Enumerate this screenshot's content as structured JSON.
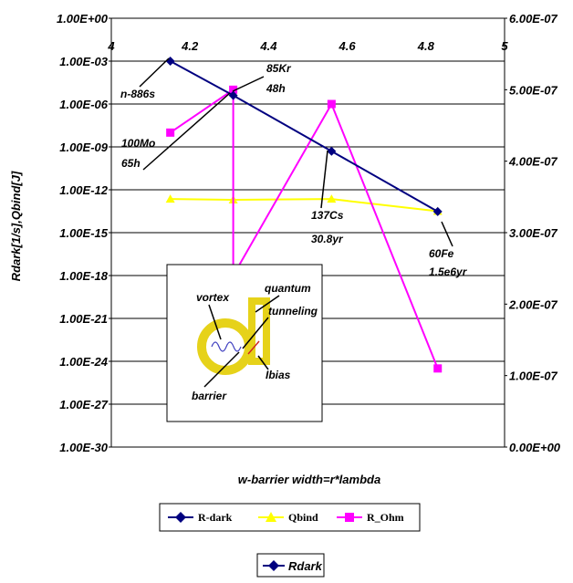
{
  "chart_data": {
    "type": "line",
    "xlabel": "w-barrier width=r*lambda",
    "ylabel": "Rdark[1/s],Qbind[J]",
    "xlim": [
      4,
      5
    ],
    "x_ticks": [
      "4",
      "4.2",
      "4.4",
      "4.6",
      "4.8",
      "5"
    ],
    "y_left_log_exponents": [
      0,
      -30
    ],
    "y_left_ticks": [
      "1.00E+00",
      "1.00E-03",
      "1.00E-06",
      "1.00E-09",
      "1.00E-12",
      "1.00E-15",
      "1.00E-18",
      "1.00E-21",
      "1.00E-24",
      "1.00E-27",
      "1.00E-30"
    ],
    "y_right_lim": [
      0,
      6e-07
    ],
    "y_right_ticks": [
      "6.00E-07",
      "5.00E-07",
      "4.00E-07",
      "3.00E-07",
      "2.00E-07",
      "1.00E-07",
      "0.00E+00"
    ],
    "grid": true,
    "series": [
      {
        "name": "R-dark",
        "axis": "left",
        "color": "#000080",
        "marker": "diamond",
        "x": [
          4.15,
          4.31,
          4.56,
          4.83
        ],
        "y": [
          0.001,
          4e-06,
          5e-10,
          3e-14
        ]
      },
      {
        "name": "Qbind",
        "axis": "right",
        "color": "#ffff00",
        "marker": "triangle",
        "x": [
          4.15,
          4.31,
          4.56,
          4.83
        ],
        "y": [
          3.47e-07,
          3.46e-07,
          3.47e-07,
          3.3e-07
        ]
      },
      {
        "name": "R_Ohm",
        "axis": "right",
        "color": "#ff00ff",
        "marker": "square",
        "x": [
          4.15,
          4.31,
          4.31,
          4.56,
          4.83
        ],
        "y": [
          4.4e-07,
          5e-07,
          2.4e-07,
          4.8e-07,
          1.1e-07
        ]
      }
    ],
    "annotations": [
      {
        "lines": [
          "n-886s"
        ]
      },
      {
        "lines": [
          "85Kr",
          "48h"
        ]
      },
      {
        "lines": [
          "100Mo",
          "65h"
        ]
      },
      {
        "lines": [
          "137Cs",
          "30.8yr"
        ]
      },
      {
        "lines": [
          "60Fe",
          "1.5e6yr"
        ]
      }
    ],
    "inset_labels": {
      "vortex": "vortex",
      "quantum": "quantum",
      "tunneling": "tunneling",
      "ibias": "Ibias",
      "barrier": "barrier"
    },
    "legend": {
      "entries": [
        "R-dark",
        "Qbind",
        "R_Ohm"
      ],
      "placement": "bottom"
    },
    "legend2": {
      "label": "Rdark"
    }
  }
}
